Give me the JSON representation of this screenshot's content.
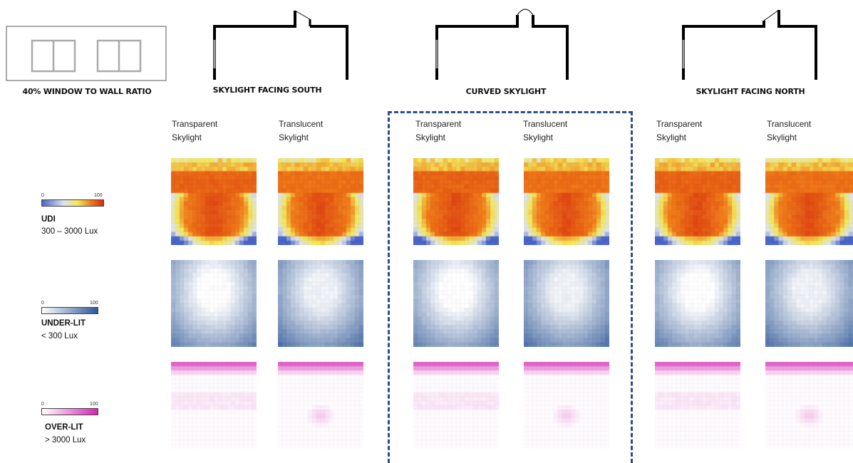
{
  "sections": {
    "window": "40% WINDOW TO WALL RATIO",
    "south": "SKYLIGHT FACING SOUTH",
    "curved": "CURVED SKYLIGHT",
    "north": "SKYLIGHT FACING NORTH"
  },
  "cases": {
    "transparent": [
      "Transparent",
      "Skylight"
    ],
    "translucent": [
      "Translucent",
      "Skylight"
    ]
  },
  "legends": {
    "udi": {
      "title": "UDI",
      "sub": "300 – 3000 Lux",
      "min": "0",
      "max": "100"
    },
    "underlit": {
      "title": "UNDER-LIT",
      "sub": "< 300 Lux",
      "min": "0",
      "max": "100"
    },
    "overlit": {
      "title": "OVER-LIT",
      "sub": "> 3000 Lux",
      "min": "0",
      "max": "100"
    }
  },
  "colors": {
    "udi_scale": [
      "#4a64c8",
      "#dbe3ee",
      "#f3e75a",
      "#f07a18",
      "#d62a10"
    ],
    "underlit_scale": [
      "#ffffff",
      "#2e5797"
    ],
    "overlit_scale": [
      "#ffffff",
      "#d623b7"
    ],
    "highlight_border": "#2a4f86"
  }
}
